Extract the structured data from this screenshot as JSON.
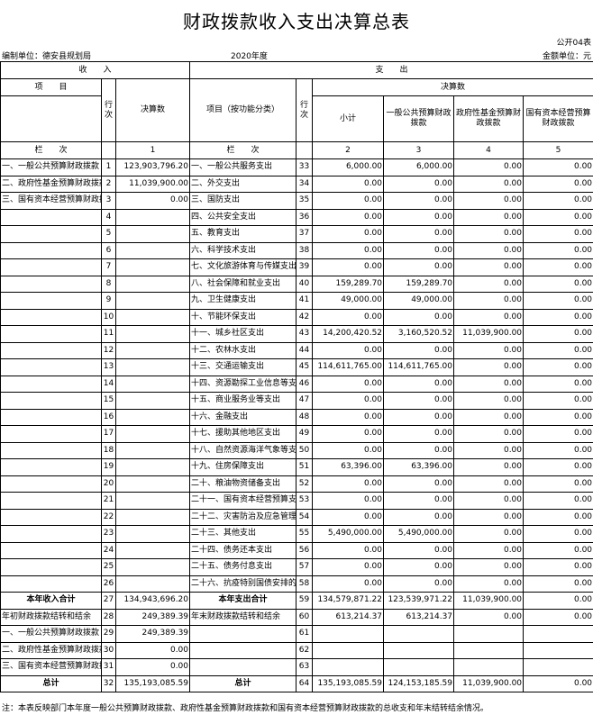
{
  "title": "财政拨款收入支出决算总表",
  "form_no": "公开04表",
  "compiler": "编制单位：德安县规划局",
  "year": "2020年度",
  "unit": "金额单位：元",
  "header": {
    "income": "收　　入",
    "expense": "支　　出",
    "item": "项　　目",
    "row_no": "行次",
    "final_amount": "决算数",
    "exp_item": "项目（按功能分类）",
    "exp_row_no": "行次",
    "exp_final": "决算数",
    "subtotal": "小计",
    "general": "一般公共预算财政拨款",
    "fund": "政府性基金预算财政拨款",
    "state": "国有资本经营预算财政拨款",
    "column_label": "栏　　次",
    "col1": "1",
    "col2": "2",
    "col3": "3",
    "col4": "4",
    "col5": "5"
  },
  "rows": [
    {
      "l": "一、一般公共预算财政拨款",
      "ln": "1",
      "lv": "123,903,796.20",
      "r": "一、一般公共服务支出",
      "rn": "33",
      "v": [
        "6,000.00",
        "6,000.00",
        "0.00",
        "0.00"
      ]
    },
    {
      "l": "二、政府性基金预算财政拨款",
      "ln": "2",
      "lv": "11,039,900.00",
      "r": "二、外交支出",
      "rn": "34",
      "v": [
        "0.00",
        "0.00",
        "0.00",
        "0.00"
      ]
    },
    {
      "l": "三、国有资本经营预算财政拨款",
      "ln": "3",
      "lv": "0.00",
      "r": "三、国防支出",
      "rn": "35",
      "v": [
        "0.00",
        "0.00",
        "0.00",
        "0.00"
      ]
    },
    {
      "l": "",
      "ln": "4",
      "lv": "",
      "r": "四、公共安全支出",
      "rn": "36",
      "v": [
        "0.00",
        "0.00",
        "0.00",
        "0.00"
      ]
    },
    {
      "l": "",
      "ln": "5",
      "lv": "",
      "r": "五、教育支出",
      "rn": "37",
      "v": [
        "0.00",
        "0.00",
        "0.00",
        "0.00"
      ]
    },
    {
      "l": "",
      "ln": "6",
      "lv": "",
      "r": "六、科学技术支出",
      "rn": "38",
      "v": [
        "0.00",
        "0.00",
        "0.00",
        "0.00"
      ]
    },
    {
      "l": "",
      "ln": "7",
      "lv": "",
      "r": "七、文化旅游体育与传媒支出",
      "rn": "39",
      "v": [
        "0.00",
        "0.00",
        "0.00",
        "0.00"
      ]
    },
    {
      "l": "",
      "ln": "8",
      "lv": "",
      "r": "八、社会保障和就业支出",
      "rn": "40",
      "v": [
        "159,289.70",
        "159,289.70",
        "0.00",
        "0.00"
      ]
    },
    {
      "l": "",
      "ln": "9",
      "lv": "",
      "r": "九、卫生健康支出",
      "rn": "41",
      "v": [
        "49,000.00",
        "49,000.00",
        "0.00",
        "0.00"
      ]
    },
    {
      "l": "",
      "ln": "10",
      "lv": "",
      "r": "十、节能环保支出",
      "rn": "42",
      "v": [
        "0.00",
        "0.00",
        "0.00",
        "0.00"
      ]
    },
    {
      "l": "",
      "ln": "11",
      "lv": "",
      "r": "十一、城乡社区支出",
      "rn": "43",
      "v": [
        "14,200,420.52",
        "3,160,520.52",
        "11,039,900.00",
        "0.00"
      ]
    },
    {
      "l": "",
      "ln": "12",
      "lv": "",
      "r": "十二、农林水支出",
      "rn": "44",
      "v": [
        "0.00",
        "0.00",
        "0.00",
        "0.00"
      ]
    },
    {
      "l": "",
      "ln": "13",
      "lv": "",
      "r": "十三、交通运输支出",
      "rn": "45",
      "v": [
        "114,611,765.00",
        "114,611,765.00",
        "0.00",
        "0.00"
      ]
    },
    {
      "l": "",
      "ln": "14",
      "lv": "",
      "r": "十四、资源勘探工业信息等支出",
      "rn": "46",
      "v": [
        "0.00",
        "0.00",
        "0.00",
        "0.00"
      ]
    },
    {
      "l": "",
      "ln": "15",
      "lv": "",
      "r": "十五、商业服务业等支出",
      "rn": "47",
      "v": [
        "0.00",
        "0.00",
        "0.00",
        "0.00"
      ]
    },
    {
      "l": "",
      "ln": "16",
      "lv": "",
      "r": "十六、金融支出",
      "rn": "48",
      "v": [
        "0.00",
        "0.00",
        "0.00",
        "0.00"
      ]
    },
    {
      "l": "",
      "ln": "17",
      "lv": "",
      "r": "十七、援助其他地区支出",
      "rn": "49",
      "v": [
        "0.00",
        "0.00",
        "0.00",
        "0.00"
      ]
    },
    {
      "l": "",
      "ln": "18",
      "lv": "",
      "r": "十八、自然资源海洋气象等支出",
      "rn": "50",
      "v": [
        "0.00",
        "0.00",
        "0.00",
        "0.00"
      ]
    },
    {
      "l": "",
      "ln": "19",
      "lv": "",
      "r": "十九、住房保障支出",
      "rn": "51",
      "v": [
        "63,396.00",
        "63,396.00",
        "0.00",
        "0.00"
      ]
    },
    {
      "l": "",
      "ln": "20",
      "lv": "",
      "r": "二十、粮油物资储备支出",
      "rn": "52",
      "v": [
        "0.00",
        "0.00",
        "0.00",
        "0.00"
      ]
    },
    {
      "l": "",
      "ln": "21",
      "lv": "",
      "r": "二十一、国有资本经营预算支出",
      "rn": "53",
      "v": [
        "0.00",
        "0.00",
        "0.00",
        "0.00"
      ]
    },
    {
      "l": "",
      "ln": "22",
      "lv": "",
      "r": "二十二、灾害防治及应急管理支出",
      "rn": "54",
      "v": [
        "0.00",
        "0.00",
        "0.00",
        "0.00"
      ]
    },
    {
      "l": "",
      "ln": "23",
      "lv": "",
      "r": "二十三、其他支出",
      "rn": "55",
      "v": [
        "5,490,000.00",
        "5,490,000.00",
        "0.00",
        "0.00"
      ]
    },
    {
      "l": "",
      "ln": "24",
      "lv": "",
      "r": "二十四、债务还本支出",
      "rn": "56",
      "v": [
        "0.00",
        "0.00",
        "0.00",
        "0.00"
      ]
    },
    {
      "l": "",
      "ln": "25",
      "lv": "",
      "r": "二十五、债务付息支出",
      "rn": "57",
      "v": [
        "0.00",
        "0.00",
        "0.00",
        "0.00"
      ]
    },
    {
      "l": "",
      "ln": "26",
      "lv": "",
      "r": "二十六、抗疫特别国债安排的支出",
      "rn": "58",
      "v": [
        "0.00",
        "0.00",
        "0.00",
        "0.00"
      ]
    },
    {
      "l": "本年收入合计",
      "ln": "27",
      "lv": "134,943,696.20",
      "r": "本年支出合计",
      "rn": "59",
      "v": [
        "134,579,871.22",
        "123,539,971.22",
        "11,039,900.00",
        "0.00"
      ],
      "bold": true
    },
    {
      "l": "年初财政拨款结转和结余",
      "ln": "28",
      "lv": "249,389.39",
      "r": "年末财政拨款结转和结余",
      "rn": "60",
      "v": [
        "613,214.37",
        "613,214.37",
        "0.00",
        "0.00"
      ]
    },
    {
      "l": "一、一般公共预算财政拨款",
      "ln": "29",
      "lv": "249,389.39",
      "r": "",
      "rn": "61",
      "v": [
        "",
        "",
        "",
        ""
      ]
    },
    {
      "l": "二、政府性基金预算财政拨款",
      "ln": "30",
      "lv": "0.00",
      "r": "",
      "rn": "62",
      "v": [
        "",
        "",
        "",
        ""
      ]
    },
    {
      "l": "三、国有资本经营预算财政拨款",
      "ln": "31",
      "lv": "0.00",
      "r": "",
      "rn": "63",
      "v": [
        "",
        "",
        "",
        ""
      ]
    },
    {
      "l": "总计",
      "ln": "32",
      "lv": "135,193,085.59",
      "r": "总计",
      "rn": "64",
      "v": [
        "135,193,085.59",
        "124,153,185.59",
        "11,039,900.00",
        "0.00"
      ],
      "bold": true
    }
  ],
  "note": "注：本表反映部门本年度一般公共预算财政拨款、政府性基金预算财政拨款和国有资本经营预算财政拨款的总收支和年末结转结余情况。"
}
